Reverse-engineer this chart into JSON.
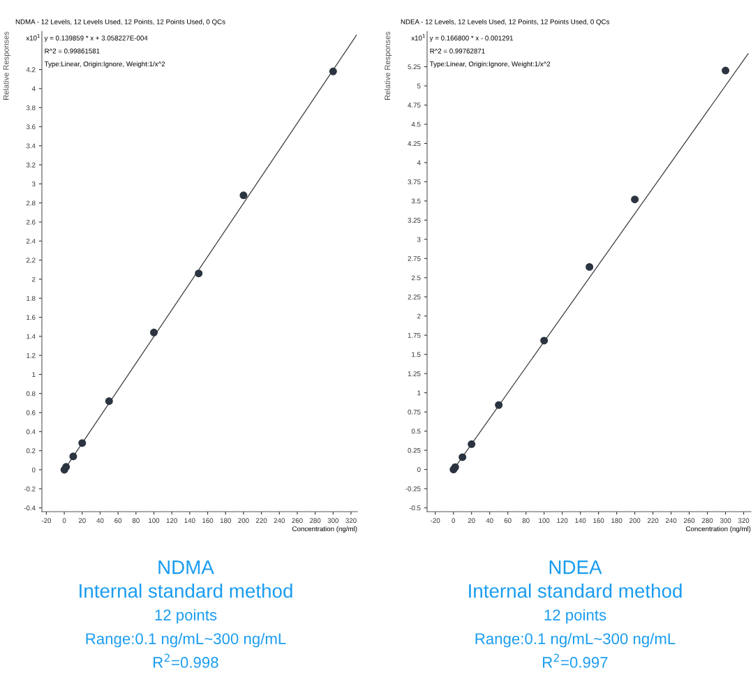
{
  "chart_data": [
    {
      "type": "scatter",
      "title": "NDMA - 12 Levels, 12 Levels Used, 12 Points, 12 Points Used, 0 QCs",
      "xlabel": "Concentration (ng/ml)",
      "ylabel": "Relative Responses",
      "annotations": [
        "x10$^{1}$",
        "y = 0.139859 * x + 3.058227E-004",
        "R^2 = 0.99861581",
        "Type:Linear, Origin:Ignore, Weight:1/x^2",
        "NDMA",
        "Internal standard method",
        "12 points",
        "Range:0.1 ng/mL~300 ng/mL",
        "R$^{2}$=0.998"
      ],
      "x": [
        0.1,
        0.2,
        0.5,
        1,
        2,
        10,
        20,
        50,
        100,
        150,
        200,
        300
      ],
      "series": [
        {
          "type": "scatter",
          "color": "#2b3440",
          "marker": "circle",
          "values": [
            0,
            null,
            null,
            null,
            0.03,
            0.14,
            0.28,
            0.72,
            1.44,
            2.06,
            2.88,
            4.18
          ]
        },
        {
          "type": "line",
          "color": "#3a3a3a",
          "marker": "none",
          "x": [
            0.1,
            326
          ],
          "values": [
            0,
            4.56
          ]
        }
      ],
      "xlim": [
        -25,
        327
      ],
      "ylim": [
        -0.44,
        4.6
      ],
      "xticks": [
        -20,
        0,
        20,
        40,
        60,
        80,
        100,
        120,
        140,
        160,
        180,
        200,
        220,
        240,
        260,
        280,
        300,
        320
      ],
      "yticks": [
        -0.4,
        -0.2,
        0,
        0.2,
        0.4,
        0.6,
        0.8,
        1,
        1.2,
        1.4,
        1.6,
        1.8,
        2,
        2.2,
        2.4,
        2.6,
        2.8,
        3,
        3.2,
        3.4,
        3.6,
        3.8,
        4,
        4.2
      ],
      "grid": false
    },
    {
      "type": "scatter",
      "title": "NDEA - 12 Levels, 12 Levels Used, 12 Points, 12 Points Used, 0 QCs",
      "xlabel": "Concentration (ng/ml)",
      "ylabel": "Relative Responses",
      "annotations": [
        "x10$^{1}$",
        "y = 0.166800 * x - 0.001291",
        "R^2 = 0.99762871",
        "Type:Linear, Origin:Ignore, Weight:1/x^2",
        "NDEA",
        "Internal standard method",
        "12 points",
        "Range:0.1 ng/mL~300 ng/mL",
        "R$^{2}$=0.997"
      ],
      "x": [
        0.1,
        0.2,
        0.5,
        1,
        2,
        10,
        20,
        50,
        100,
        150,
        200,
        300
      ],
      "series": [
        {
          "type": "scatter",
          "color": "#2b3440",
          "marker": "circle",
          "values": [
            0,
            null,
            null,
            null,
            0.03,
            0.16,
            0.33,
            0.84,
            1.68,
            2.64,
            3.52,
            5.2
          ]
        },
        {
          "type": "line",
          "color": "#3a3a3a",
          "marker": "none",
          "x": [
            0.1,
            325
          ],
          "values": [
            0,
            5.42
          ]
        }
      ],
      "xlim": [
        -29,
        328
      ],
      "ylim": [
        -0.55,
        5.71
      ],
      "xticks": [
        -20,
        0,
        20,
        40,
        60,
        80,
        100,
        120,
        140,
        160,
        180,
        200,
        220,
        240,
        260,
        280,
        300,
        320
      ],
      "yticks": [
        -0.5,
        -0.25,
        0,
        0.25,
        0.5,
        0.75,
        1,
        1.25,
        1.5,
        1.75,
        2,
        2.25,
        2.5,
        2.75,
        3,
        3.25,
        3.5,
        3.75,
        4,
        4.25,
        4.5,
        4.75,
        5,
        5.25
      ],
      "grid": false
    }
  ]
}
